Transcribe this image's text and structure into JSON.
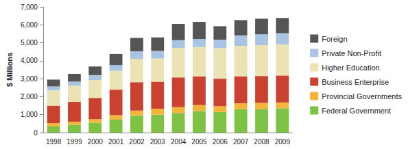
{
  "chart_data": {
    "type": "bar",
    "stacked": true,
    "grid": false,
    "legend": "right",
    "y_label": "$ Millions",
    "categories": [
      "1998",
      "1999",
      "2000",
      "2001",
      "2002",
      "2003",
      "2004",
      "2005",
      "2006",
      "2007",
      "2008",
      "2009"
    ],
    "series": [
      {
        "name": "Federal Government",
        "color": "#7dc242",
        "values": [
          350,
          430,
          550,
          720,
          930,
          1000,
          1080,
          1200,
          1150,
          1300,
          1300,
          1350
        ]
      },
      {
        "name": "Provincial Governments",
        "color": "#f4b43c",
        "values": [
          180,
          180,
          200,
          250,
          300,
          330,
          340,
          330,
          320,
          330,
          350,
          330
        ]
      },
      {
        "name": "Business Enterprise",
        "color": "#c9412f",
        "values": [
          970,
          1100,
          1180,
          1420,
          1580,
          1500,
          1650,
          1600,
          1530,
          1500,
          1500,
          1500
        ]
      },
      {
        "name": "Higher Education",
        "color": "#ebe3b4",
        "values": [
          850,
          900,
          1000,
          1050,
          1300,
          1300,
          1650,
          1630,
          1700,
          1700,
          1720,
          1730
        ]
      },
      {
        "name": "Private Non-Profit",
        "color": "#a9c4e2",
        "values": [
          220,
          230,
          270,
          320,
          420,
          420,
          430,
          450,
          470,
          580,
          600,
          620
        ]
      },
      {
        "name": "Foreign",
        "color": "#555555",
        "values": [
          380,
          430,
          480,
          620,
          740,
          750,
          900,
          950,
          750,
          850,
          870,
          850
        ]
      }
    ],
    "ylim": [
      0,
      7000
    ],
    "yticks": [
      0,
      {
        "value": 1000,
        "label": "1,000"
      },
      {
        "value": 2000,
        "label": "2,000"
      },
      {
        "value": 3000,
        "label": "3,000"
      },
      {
        "value": 4000,
        "label": "4,000"
      },
      {
        "value": 5000,
        "label": "5,000"
      },
      {
        "value": 6000,
        "label": "6,000"
      },
      {
        "value": 7000,
        "label": "7,000"
      }
    ]
  }
}
